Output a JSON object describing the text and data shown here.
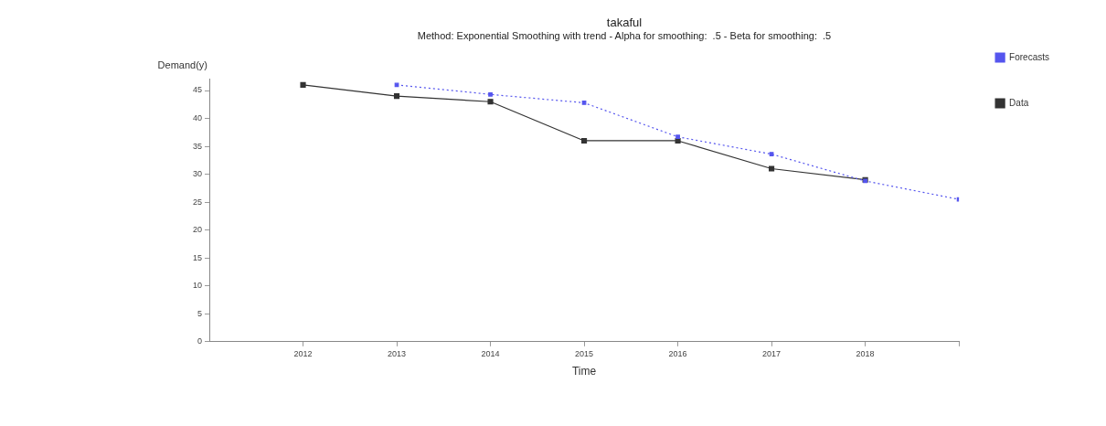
{
  "chart_data": {
    "type": "line",
    "title": "takaful",
    "subtitle": "Method: Exponential Smoothing with trend - Alpha for smoothing:  .5 - Beta for smoothing:  .5",
    "xlabel": "Time",
    "ylabel": "Demand(y)",
    "xlim": [
      2011,
      2019
    ],
    "xticks": [
      2012,
      2013,
      2014,
      2015,
      2016,
      2017,
      2018,
      {
        "value": 2019,
        "label": null
      }
    ],
    "ylim": [
      0,
      47
    ],
    "yticks": [
      0,
      5,
      10,
      15,
      20,
      25,
      30,
      35,
      40,
      45
    ],
    "grid": false,
    "legend": "top right",
    "marker": "square",
    "series": [
      {
        "name": "Data",
        "color": "#333333",
        "line_style": "solid",
        "x": [
          2012,
          2013,
          2014,
          2015,
          2016,
          2017,
          2018
        ],
        "values": [
          46,
          44,
          43,
          36,
          36,
          31,
          29
        ]
      },
      {
        "name": "Forecasts",
        "color": "#5555ee",
        "line_style": "dotted",
        "x": [
          2013,
          2014,
          2015,
          2016,
          2017,
          2018,
          2019
        ],
        "values": [
          46,
          44.3,
          42.8,
          36.7,
          33.6,
          28.8,
          25.5
        ]
      }
    ]
  }
}
